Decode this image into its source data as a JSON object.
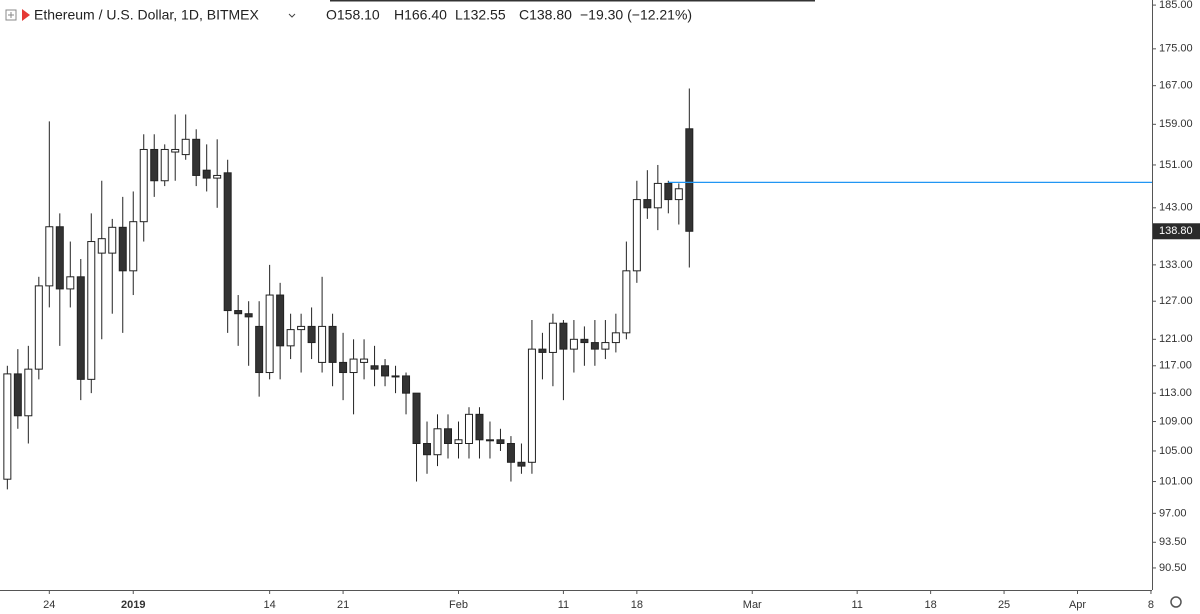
{
  "chart_data": {
    "type": "candlestick",
    "title": "Ethereum / U.S. Dollar, 1D, BITMEX",
    "ohlc_legend": [
      "O158.10",
      "H166.40",
      "L132.55",
      "C138.80",
      "−19.30 (−12.21%)"
    ],
    "x": [
      0,
      1,
      2,
      3,
      4,
      5,
      6,
      7,
      8,
      9,
      10,
      11,
      12,
      13,
      14,
      15,
      16,
      17,
      18,
      19,
      20,
      21,
      22,
      23,
      24,
      25,
      26,
      27,
      28,
      29,
      30,
      31,
      32,
      33,
      34,
      35,
      36,
      37,
      38,
      39,
      40,
      41,
      42,
      43,
      44,
      45,
      46,
      47,
      48,
      49,
      50,
      51,
      52,
      53,
      54,
      55,
      56,
      57,
      58,
      59,
      60,
      61,
      62,
      63,
      64,
      65
    ],
    "open": [
      101.3,
      115.8,
      109.8,
      116.5,
      129.5,
      139.6,
      129,
      131,
      115,
      135,
      135,
      139.5,
      132,
      140.5,
      154,
      148,
      153.5,
      153,
      156,
      150,
      148.5,
      149.5,
      125.5,
      125,
      123,
      116,
      128,
      120,
      122.5,
      123,
      117.5,
      123,
      117.5,
      116,
      117.5,
      117,
      117,
      115.5,
      115.5,
      113,
      106,
      104.5,
      108,
      106,
      106,
      110,
      106.5,
      106.5,
      106,
      103.5,
      103.5,
      119.5,
      119,
      123.5,
      119.5,
      121,
      120.5,
      119.5,
      120.5,
      122,
      132,
      144.5,
      143,
      147.5,
      144.5,
      158.1
    ],
    "high": [
      117,
      119.5,
      120,
      131,
      159.6,
      142,
      137,
      134,
      142,
      148,
      141,
      145,
      146,
      157,
      157,
      155,
      161,
      161,
      158,
      155,
      156,
      152,
      128,
      127,
      127,
      133,
      130,
      125,
      125,
      126,
      131,
      125,
      122,
      121,
      121,
      120,
      118,
      117,
      116,
      113,
      109,
      110,
      110,
      109,
      111,
      111,
      109,
      108,
      107,
      106,
      124,
      122,
      125,
      124,
      124,
      123,
      124,
      124,
      125,
      137,
      148,
      150,
      151,
      148,
      147.5,
      166.4
    ],
    "low": [
      100,
      108,
      106,
      115,
      126,
      120,
      126,
      112,
      113,
      121,
      125,
      122,
      128,
      137,
      145,
      147,
      148,
      152,
      147,
      146,
      143,
      122,
      120,
      117,
      112.5,
      115,
      115,
      118,
      116,
      118,
      116,
      114,
      112,
      110,
      115,
      114,
      114,
      113,
      110,
      101,
      102,
      103,
      104,
      104,
      104,
      104,
      104,
      105,
      101,
      102,
      102,
      115,
      114,
      112,
      116,
      117,
      117,
      118,
      119,
      121,
      130,
      141,
      139,
      142,
      140,
      132.55
    ],
    "close": [
      115.8,
      109.8,
      116.5,
      129.5,
      139.6,
      129,
      131,
      115,
      137,
      137.5,
      139.5,
      132,
      140.5,
      154,
      148,
      154,
      154,
      156,
      149,
      148.5,
      149,
      125.5,
      125,
      124.5,
      116,
      128,
      120,
      122.5,
      123,
      120.5,
      123,
      117.5,
      116,
      118,
      118,
      116.5,
      115.5,
      115.5,
      113,
      106,
      104.5,
      108,
      106,
      106.5,
      110,
      106.5,
      106.5,
      106,
      103.5,
      103,
      119.5,
      119,
      123.5,
      119.5,
      121,
      120.5,
      119.5,
      120.5,
      122,
      132,
      144.5,
      143,
      147.5,
      144.5,
      146.5,
      138.8
    ],
    "up_color": "#ffffff",
    "down_color": "#333333",
    "xlim": [
      -0.7,
      109.1
    ],
    "xticks": [
      {
        "value": 4,
        "label": "24"
      },
      {
        "value": 12,
        "label": "2019"
      },
      {
        "value": 25,
        "label": "14"
      },
      {
        "value": 32,
        "label": "21"
      },
      {
        "value": 43,
        "label": "Feb"
      },
      {
        "value": 53,
        "label": "11"
      },
      {
        "value": 60,
        "label": "18"
      },
      {
        "value": 71,
        "label": "Mar"
      },
      {
        "value": 81,
        "label": "11"
      },
      {
        "value": 88,
        "label": "18"
      },
      {
        "value": 95,
        "label": "25"
      },
      {
        "value": 102,
        "label": "Apr"
      },
      {
        "value": 109,
        "label": "8"
      }
    ],
    "ylim": [
      88,
      186.2
    ],
    "log_scale": true,
    "yticks": [
      {
        "value": 185,
        "label": "185.00"
      },
      {
        "value": 175,
        "label": "175.00"
      },
      {
        "value": 167,
        "label": "167.00"
      },
      {
        "value": 159,
        "label": "159.00"
      },
      {
        "value": 151,
        "label": "151.00"
      },
      {
        "value": 143,
        "label": "143.00"
      },
      {
        "value": 133,
        "label": "133.00"
      },
      {
        "value": 127,
        "label": "127.00"
      },
      {
        "value": 121,
        "label": "121.00"
      },
      {
        "value": 117,
        "label": "117.00"
      },
      {
        "value": 113,
        "label": "113.00"
      },
      {
        "value": 109,
        "label": "109.00"
      },
      {
        "value": 105,
        "label": "105.00"
      },
      {
        "value": 101,
        "label": "101.00"
      },
      {
        "value": 97,
        "label": "97.00"
      },
      {
        "value": 93.5,
        "label": "93.50"
      },
      {
        "value": 90.5,
        "label": "90.50"
      }
    ],
    "last_price": {
      "value": 138.8,
      "label": "138.80"
    },
    "horizontal_ray": {
      "x": 63,
      "value": 147.7,
      "color": "#2196f3"
    }
  }
}
